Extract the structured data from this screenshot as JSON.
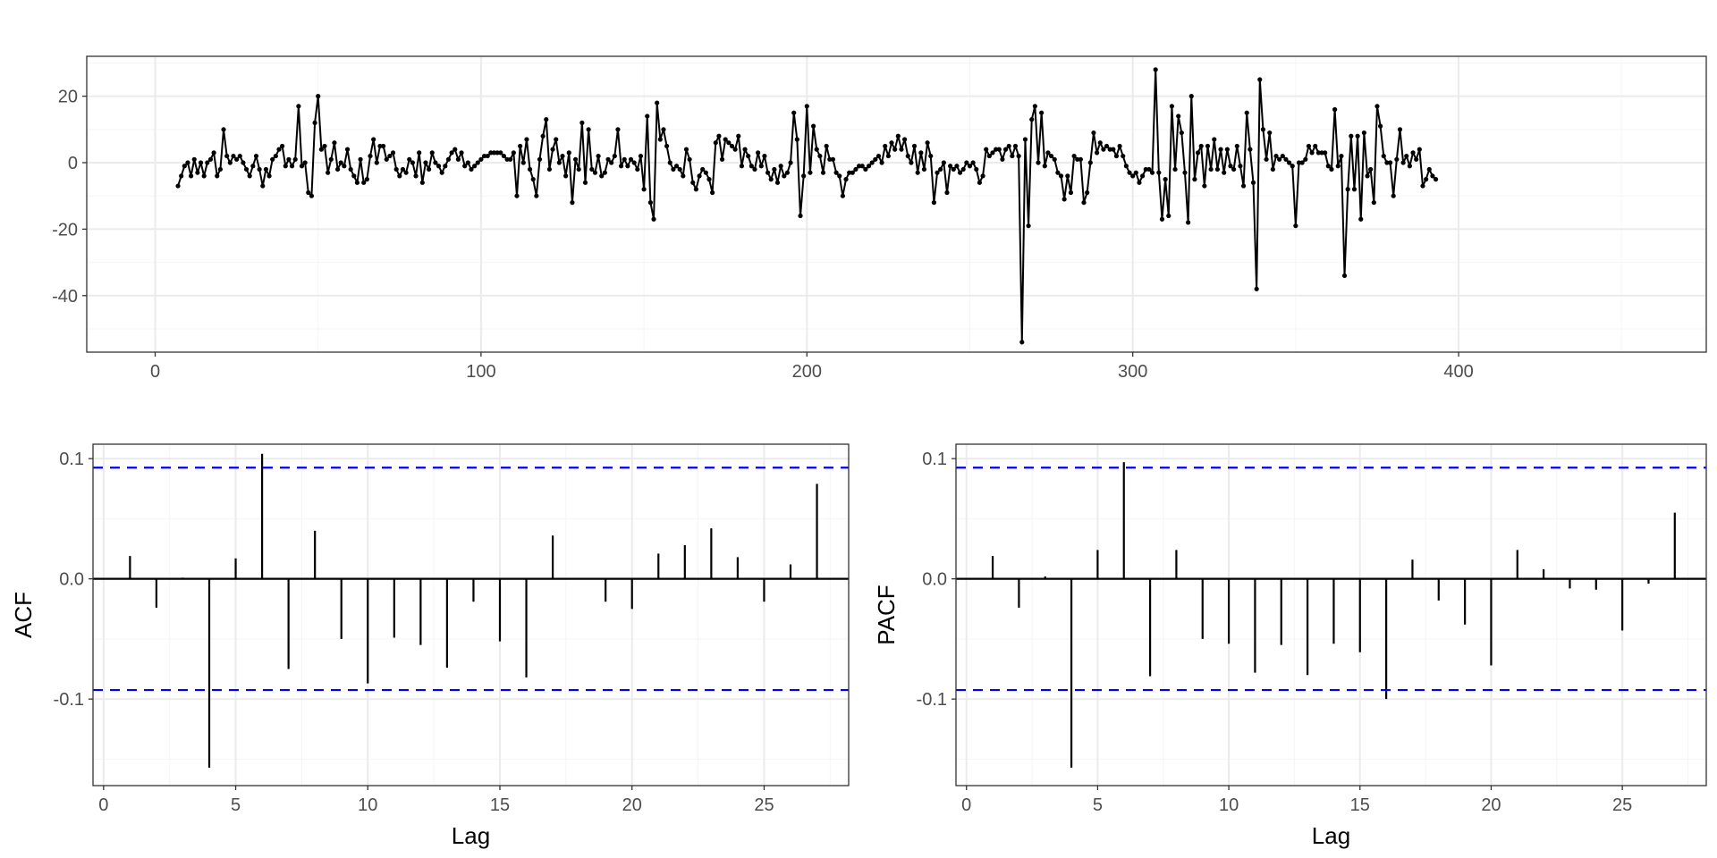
{
  "colors": {
    "line": "#000000",
    "confidence_band": "#0000ff",
    "grid_major": "#ebebeb",
    "grid_minor": "#f5f5f5",
    "panel_border": "#333333",
    "tick_text": "#4d4d4d"
  },
  "chart_data": [
    {
      "type": "line",
      "title": "",
      "xlabel": "",
      "ylabel": "",
      "xlim": [
        -21,
        476
      ],
      "ylim": [
        -57,
        32
      ],
      "x_ticks": [
        0,
        100,
        200,
        300,
        400
      ],
      "x_tick_labels": [
        "0",
        "100",
        "200",
        "300",
        "400"
      ],
      "y_ticks": [
        20,
        0,
        -20,
        -40
      ],
      "y_tick_labels": [
        "20",
        "0",
        "-20",
        "-40"
      ],
      "grid": true,
      "markers": true,
      "series": [
        {
          "x_start": 7,
          "x_step": 1,
          "values": [
            -7,
            -4,
            -1,
            0,
            -4,
            1,
            -3,
            0,
            -4,
            0,
            1,
            3,
            -4,
            -2,
            10,
            2,
            0,
            2,
            1,
            2,
            0,
            -2,
            -4,
            -1,
            2,
            -2,
            -7,
            -2,
            -4,
            1,
            2,
            4,
            5,
            -1,
            1,
            -1,
            1,
            17,
            -1,
            0,
            -9,
            -10,
            12,
            20,
            4,
            5,
            -3,
            1,
            6,
            -2,
            0,
            -1,
            4,
            -2,
            -4,
            -6,
            1,
            -6,
            -5,
            2,
            7,
            0,
            5,
            5,
            1,
            2,
            3,
            -2,
            -4,
            -2,
            -3,
            1,
            0,
            -4,
            3,
            -6,
            0,
            -2,
            3,
            0,
            -1,
            -3,
            -1,
            1,
            3,
            4,
            1,
            3,
            -1,
            0,
            -2,
            -1,
            0,
            1,
            2,
            2,
            3,
            3,
            3,
            3,
            2,
            1,
            1,
            3,
            -10,
            5,
            0,
            7,
            -2,
            -5,
            -10,
            1,
            8,
            13,
            -2,
            4,
            7,
            0,
            2,
            -4,
            3,
            -12,
            1,
            -2,
            12,
            -6,
            10,
            -2,
            -3,
            2,
            -4,
            -3,
            1,
            0,
            2,
            10,
            -1,
            1,
            -1,
            1,
            0,
            -2,
            2,
            -8,
            14,
            -12,
            -17,
            18,
            7,
            10,
            5,
            0,
            -2,
            -1,
            -2,
            -4,
            4,
            1,
            -6,
            -8,
            -4,
            -2,
            -3,
            -5,
            -9,
            6,
            8,
            1,
            7,
            6,
            5,
            4,
            8,
            -1,
            4,
            2,
            -1,
            -2,
            3,
            -1,
            2,
            -3,
            -5,
            -2,
            -6,
            -1,
            -4,
            -3,
            0,
            15,
            7,
            -16,
            -4,
            17,
            -3,
            11,
            4,
            2,
            -3,
            5,
            1,
            1,
            -3,
            -4,
            -10,
            -5,
            -3,
            -3,
            -2,
            -1,
            -1,
            -2,
            -1,
            0,
            1,
            2,
            0,
            5,
            2,
            6,
            4,
            8,
            4,
            7,
            2,
            0,
            5,
            -3,
            3,
            -2,
            6,
            2,
            -12,
            -3,
            -2,
            0,
            -9,
            -1,
            -2,
            -1,
            -3,
            -2,
            0,
            -1,
            0,
            -2,
            -6,
            -4,
            4,
            2,
            3,
            4,
            4,
            1,
            4,
            5,
            2,
            5,
            2,
            -54,
            7,
            -19,
            13,
            17,
            0,
            15,
            -1,
            3,
            2,
            1,
            -3,
            -4,
            -11,
            -4,
            -9,
            2,
            1,
            1,
            -12,
            -9,
            0,
            9,
            3,
            6,
            4,
            5,
            4,
            4,
            2,
            5,
            2,
            -1,
            -3,
            -4,
            -3,
            -6,
            -4,
            -2,
            -2,
            -3,
            28,
            -3,
            -17,
            -5,
            -16,
            17,
            -2,
            14,
            9,
            -3,
            -18,
            20,
            -5,
            3,
            5,
            -7,
            5,
            -2,
            7,
            -2,
            4,
            -3,
            4,
            -1,
            -2,
            5,
            -1,
            -7,
            15,
            4,
            -6,
            -38,
            25,
            10,
            1,
            9,
            -2,
            2,
            1,
            2,
            1,
            0,
            -1,
            -19,
            0,
            0,
            1,
            5,
            3,
            5,
            3,
            3,
            3,
            -1,
            -2,
            16,
            -1,
            2,
            -34,
            -8,
            8,
            -8,
            8,
            -17,
            9,
            -4,
            -2,
            -12,
            17,
            11,
            2,
            0,
            0,
            -10,
            1,
            10,
            0,
            2,
            -1,
            3,
            1,
            4,
            -7,
            -5,
            -2,
            -4,
            -5
          ]
        }
      ]
    },
    {
      "type": "bar",
      "title": "",
      "xlabel": "Lag",
      "ylabel": "ACF",
      "xlim": [
        -0.4,
        28.2
      ],
      "ylim": [
        -0.172,
        0.112
      ],
      "x_ticks": [
        0,
        5,
        10,
        15,
        20,
        25
      ],
      "x_tick_labels": [
        "0",
        "5",
        "10",
        "15",
        "20",
        "25"
      ],
      "y_ticks": [
        0.1,
        0.0,
        -0.1
      ],
      "y_tick_labels": [
        "0.1",
        "0.0",
        "-0.1"
      ],
      "confidence_limit": 0.0925,
      "grid": true,
      "x": [
        1,
        2,
        3,
        4,
        5,
        6,
        7,
        8,
        9,
        10,
        11,
        12,
        13,
        14,
        15,
        16,
        17,
        18,
        19,
        20,
        21,
        22,
        23,
        24,
        25,
        26,
        27
      ],
      "values": [
        0.019,
        -0.024,
        0.001,
        -0.157,
        0.017,
        0.104,
        -0.075,
        0.04,
        -0.05,
        -0.087,
        -0.049,
        -0.055,
        -0.074,
        -0.019,
        -0.052,
        -0.082,
        0.036,
        0.0,
        -0.019,
        -0.025,
        0.021,
        0.028,
        0.042,
        0.018,
        -0.019,
        0.012,
        0.079
      ]
    },
    {
      "type": "bar",
      "title": "",
      "xlabel": "Lag",
      "ylabel": "PACF",
      "xlim": [
        -0.4,
        28.2
      ],
      "ylim": [
        -0.172,
        0.112
      ],
      "x_ticks": [
        0,
        5,
        10,
        15,
        20,
        25
      ],
      "x_tick_labels": [
        "0",
        "5",
        "10",
        "15",
        "20",
        "25"
      ],
      "y_ticks": [
        0.1,
        0.0,
        -0.1
      ],
      "y_tick_labels": [
        "0.1",
        "0.0",
        "-0.1"
      ],
      "confidence_limit": 0.0925,
      "grid": true,
      "x": [
        1,
        2,
        3,
        4,
        5,
        6,
        7,
        8,
        9,
        10,
        11,
        12,
        13,
        14,
        15,
        16,
        17,
        18,
        19,
        20,
        21,
        22,
        23,
        24,
        25,
        26,
        27
      ],
      "values": [
        0.019,
        -0.024,
        0.002,
        -0.157,
        0.024,
        0.097,
        -0.081,
        0.024,
        -0.05,
        -0.054,
        -0.078,
        -0.055,
        -0.08,
        -0.054,
        -0.061,
        -0.1,
        0.016,
        -0.018,
        -0.038,
        -0.072,
        0.024,
        0.008,
        -0.008,
        -0.009,
        -0.043,
        -0.004,
        0.055
      ]
    }
  ]
}
